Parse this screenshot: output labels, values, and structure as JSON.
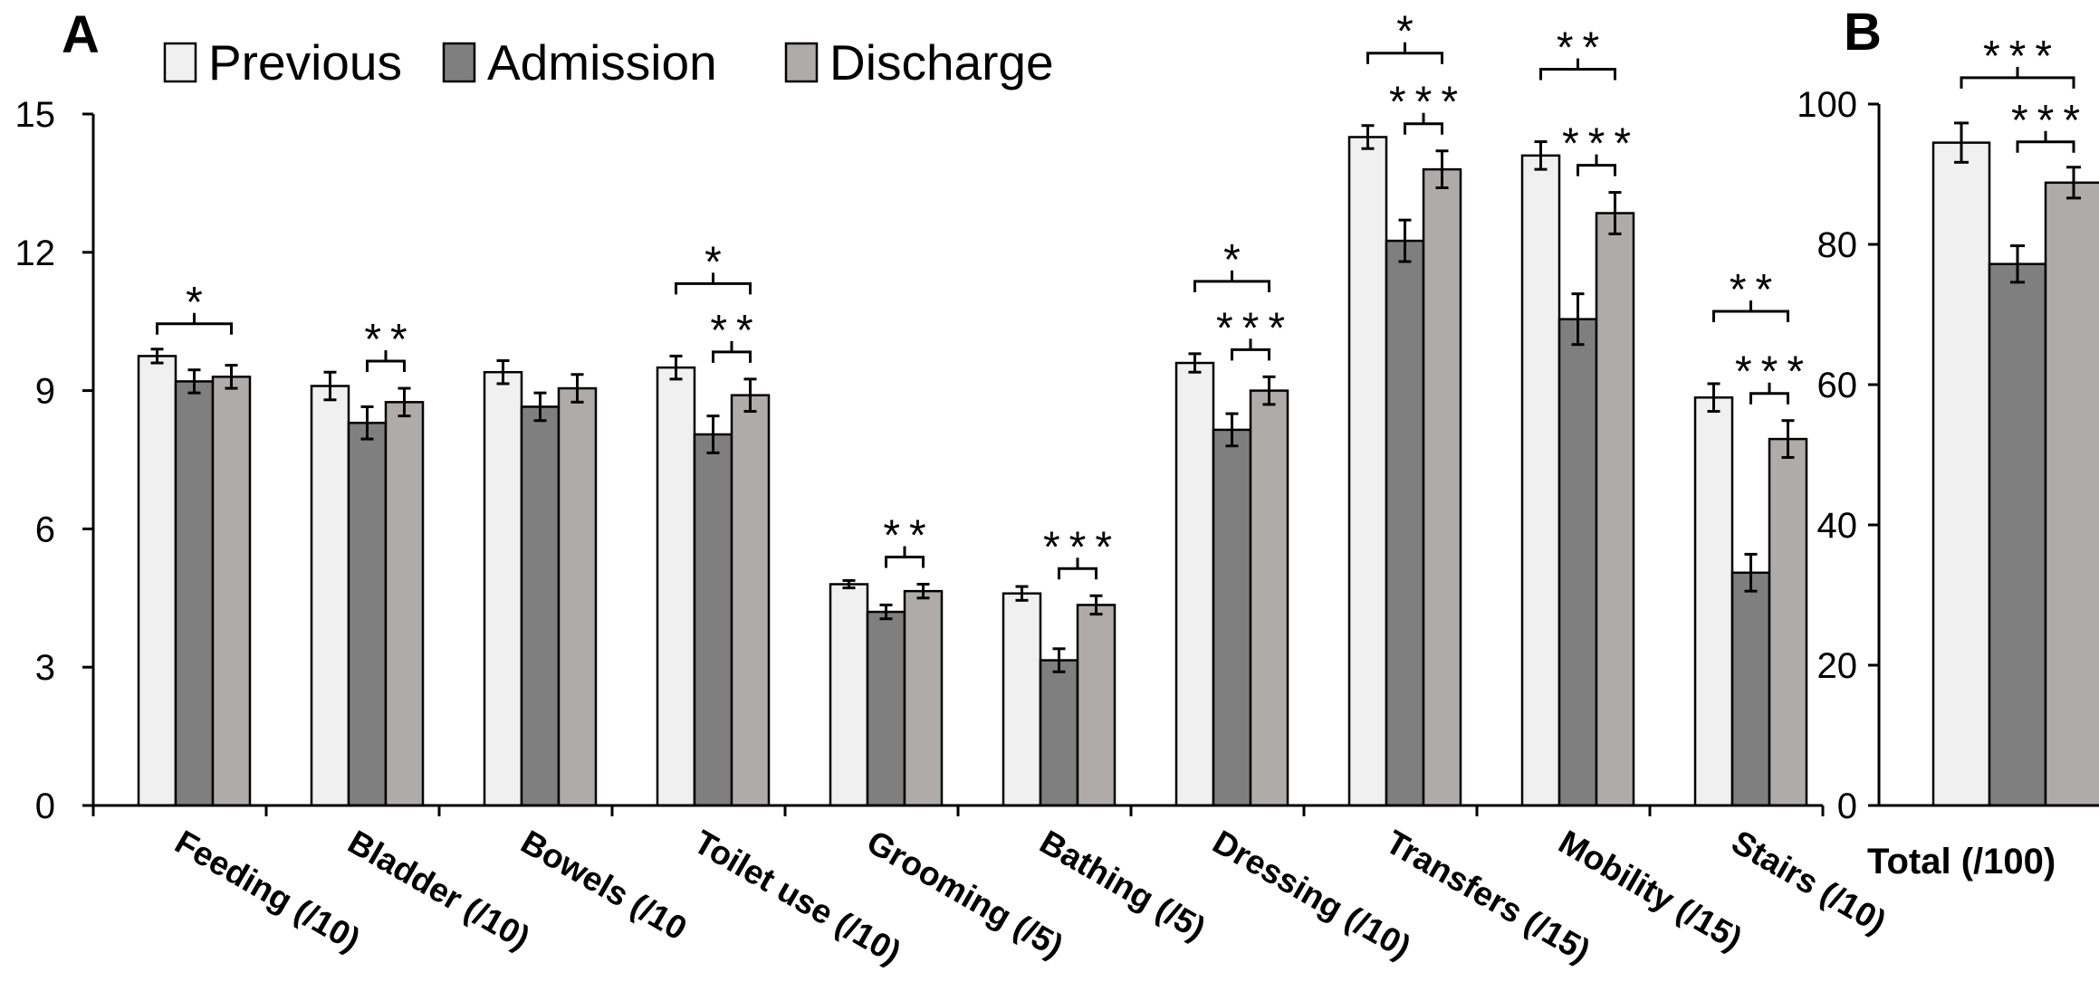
{
  "chart_data": [
    {
      "panel": "A",
      "type": "bar",
      "categories": [
        "Feeding (/10)",
        "Bladder (/10)",
        "Bowels (/10",
        "Toilet use (/10)",
        "Grooming (/5)",
        "Bathing (/5)",
        "Dressing (/10)",
        "Transfers (/15)",
        "Mobility (/15)",
        "Stairs  (/10)"
      ],
      "series": [
        {
          "name": "Previous",
          "color": "#f0f0f0",
          "values": [
            9.75,
            9.1,
            9.4,
            9.5,
            4.8,
            4.6,
            9.6,
            14.5,
            14.1,
            8.85
          ],
          "errors": [
            0.15,
            0.3,
            0.25,
            0.25,
            0.08,
            0.15,
            0.2,
            0.25,
            0.3,
            0.3
          ]
        },
        {
          "name": "Admission",
          "color": "#7f7f7f",
          "values": [
            9.2,
            8.3,
            8.65,
            8.05,
            4.2,
            3.15,
            8.15,
            12.25,
            10.55,
            5.05
          ],
          "errors": [
            0.25,
            0.35,
            0.3,
            0.4,
            0.15,
            0.25,
            0.35,
            0.45,
            0.55,
            0.4
          ]
        },
        {
          "name": "Discharge",
          "color": "#afabab",
          "values": [
            9.3,
            8.75,
            9.05,
            8.9,
            4.65,
            4.35,
            9.0,
            13.8,
            12.85,
            7.95
          ],
          "errors": [
            0.25,
            0.3,
            0.3,
            0.35,
            0.15,
            0.2,
            0.3,
            0.4,
            0.45,
            0.4
          ]
        }
      ],
      "ylim": [
        0,
        15
      ],
      "yticks": [
        "0",
        "3",
        "6",
        "9",
        "12",
        "15"
      ],
      "legend_position": "top-left",
      "significance": [
        {
          "category": "Feeding (/10)",
          "comparison": "Previous-Discharge",
          "label": "*"
        },
        {
          "category": "Bladder (/10)",
          "comparison": "Admission-Discharge",
          "label": "**"
        },
        {
          "category": "Toilet use (/10)",
          "comparison": "Previous-Discharge",
          "label": "*"
        },
        {
          "category": "Toilet use (/10)",
          "comparison": "Admission-Discharge",
          "label": "**"
        },
        {
          "category": "Grooming (/5)",
          "comparison": "Admission-Discharge",
          "label": "**"
        },
        {
          "category": "Bathing (/5)",
          "comparison": "Admission-Discharge",
          "label": "***"
        },
        {
          "category": "Dressing (/10)",
          "comparison": "Previous-Discharge",
          "label": "*"
        },
        {
          "category": "Dressing (/10)",
          "comparison": "Admission-Discharge",
          "label": "***"
        },
        {
          "category": "Transfers (/15)",
          "comparison": "Previous-Discharge",
          "label": "*"
        },
        {
          "category": "Transfers (/15)",
          "comparison": "Admission-Discharge",
          "label": "***"
        },
        {
          "category": "Mobility (/15)",
          "comparison": "Previous-Discharge",
          "label": "**"
        },
        {
          "category": "Mobility (/15)",
          "comparison": "Admission-Discharge",
          "label": "***"
        },
        {
          "category": "Stairs  (/10)",
          "comparison": "Previous-Discharge",
          "label": "**"
        },
        {
          "category": "Stairs  (/10)",
          "comparison": "Admission-Discharge",
          "label": "***"
        }
      ]
    },
    {
      "panel": "B",
      "type": "bar",
      "categories": [
        "Total (/100)"
      ],
      "series": [
        {
          "name": "Previous",
          "color": "#f0f0f0",
          "values": [
            94.5
          ],
          "errors": [
            2.8
          ]
        },
        {
          "name": "Admission",
          "color": "#7f7f7f",
          "values": [
            77.2
          ],
          "errors": [
            2.6
          ]
        },
        {
          "name": "Discharge",
          "color": "#afabab",
          "values": [
            88.8
          ],
          "errors": [
            2.2
          ]
        }
      ],
      "ylim": [
        0,
        100
      ],
      "yticks": [
        "0",
        "20",
        "40",
        "60",
        "80",
        "100"
      ],
      "significance": [
        {
          "category": "Total (/100)",
          "comparison": "Previous-Discharge",
          "label": "***"
        },
        {
          "category": "Total (/100)",
          "comparison": "Admission-Discharge",
          "label": "***"
        }
      ]
    }
  ]
}
